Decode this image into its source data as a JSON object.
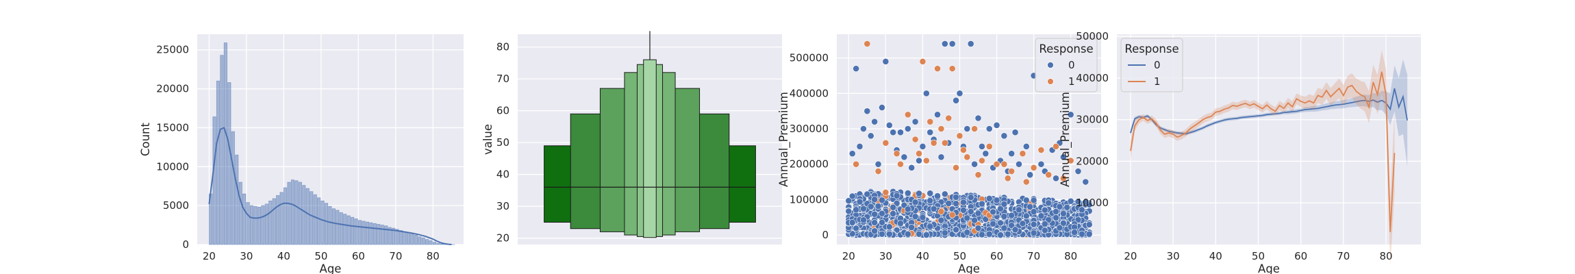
{
  "chart_data": [
    {
      "type": "histogram",
      "xlabel": "Age",
      "ylabel": "Count",
      "xlim": [
        16.8,
        88.2
      ],
      "ylim": [
        0,
        27000
      ],
      "xticks": [
        20,
        30,
        40,
        50,
        60,
        70,
        80
      ],
      "yticks": [
        0,
        5000,
        10000,
        15000,
        20000,
        25000
      ],
      "bin_starts": [
        20,
        21,
        22,
        23,
        24,
        25,
        26,
        27,
        28,
        29,
        30,
        31,
        32,
        33,
        34,
        35,
        36,
        37,
        38,
        39,
        40,
        41,
        42,
        43,
        44,
        45,
        46,
        47,
        48,
        49,
        50,
        51,
        52,
        53,
        54,
        55,
        56,
        57,
        58,
        59,
        60,
        61,
        62,
        63,
        64,
        65,
        66,
        67,
        68,
        69,
        70,
        71,
        72,
        73,
        74,
        75,
        76,
        77,
        78,
        79,
        80,
        81,
        82,
        83,
        84,
        85
      ],
      "counts": [
        6500,
        16400,
        21000,
        24300,
        25900,
        20800,
        14500,
        11500,
        8000,
        6500,
        5400,
        5000,
        4900,
        4800,
        5000,
        5200,
        5600,
        5900,
        6300,
        6700,
        7300,
        8000,
        8300,
        8200,
        8000,
        7600,
        7200,
        6800,
        6400,
        6000,
        5600,
        5300,
        4900,
        4600,
        4400,
        4100,
        3900,
        3700,
        3500,
        3300,
        3100,
        3000,
        2900,
        2800,
        2700,
        2600,
        2500,
        2400,
        2200,
        2100,
        1950,
        1800,
        1650,
        1500,
        1350,
        1200,
        1000,
        850,
        650,
        500,
        300,
        150,
        80,
        40,
        20,
        10
      ],
      "kde": {
        "x": [
          20,
          21,
          22,
          23,
          24,
          25,
          26,
          27,
          28,
          29,
          30,
          31,
          32,
          33,
          34,
          35,
          36,
          37,
          38,
          39,
          40,
          41,
          42,
          43,
          44,
          45,
          46,
          47,
          48,
          49,
          50,
          52,
          54,
          56,
          58,
          60,
          62,
          64,
          66,
          68,
          70,
          72,
          74,
          76,
          78,
          80,
          81,
          82,
          83,
          84,
          85
        ],
        "y": [
          5200,
          9000,
          13000,
          14800,
          15000,
          13500,
          11000,
          8500,
          6300,
          4800,
          4000,
          3500,
          3400,
          3400,
          3500,
          3700,
          4000,
          4400,
          4800,
          5100,
          5300,
          5300,
          5200,
          5000,
          4700,
          4400,
          4100,
          3800,
          3600,
          3400,
          3200,
          2900,
          2700,
          2550,
          2400,
          2300,
          2200,
          2100,
          2000,
          1900,
          1800,
          1650,
          1500,
          1300,
          1050,
          700,
          450,
          250,
          120,
          40,
          0
        ]
      }
    },
    {
      "type": "boxen",
      "xlabel": "",
      "ylabel": "value",
      "ylim": [
        18,
        84
      ],
      "yticks": [
        20,
        30,
        40,
        50,
        60,
        70,
        80
      ],
      "median": 36,
      "whisker": [
        76,
        85
      ],
      "boxes": [
        {
          "low": 25,
          "high": 49,
          "color": "#107010"
        },
        {
          "low": 23,
          "high": 59,
          "color": "#3c8a3c"
        },
        {
          "low": 22,
          "high": 67,
          "color": "#5ca25c"
        },
        {
          "low": 21,
          "high": 72,
          "color": "#75b575"
        },
        {
          "low": 20.5,
          "high": 74.5,
          "color": "#8bc58b"
        },
        {
          "low": 20.2,
          "high": 76,
          "color": "#a6d6a6"
        }
      ]
    },
    {
      "type": "scatter",
      "xlabel": "Age",
      "ylabel": "Annual_Premium",
      "xlim": [
        16.8,
        88.2
      ],
      "ylim": [
        -27000,
        567000
      ],
      "xticks": [
        20,
        30,
        40,
        50,
        60,
        70,
        80
      ],
      "yticks": [
        0,
        100000,
        200000,
        300000,
        400000,
        500000
      ],
      "legend": {
        "title": "Response",
        "entries": [
          "0",
          "1"
        ],
        "placement": "upper right"
      },
      "series": [
        {
          "name": "0",
          "color": "#4c72b0",
          "points": [
            [
              22,
              470000
            ],
            [
              30,
              490000
            ],
            [
              46,
              540000
            ],
            [
              48,
              540000
            ],
            [
              53,
              540000
            ],
            [
              34,
              290000
            ],
            [
              36,
              300000
            ],
            [
              38,
              320000
            ],
            [
              41,
              400000
            ],
            [
              50,
              400000
            ],
            [
              52,
              300000
            ],
            [
              55,
              330000
            ],
            [
              58,
              300000
            ],
            [
              60,
              310000
            ],
            [
              65,
              290000
            ],
            [
              70,
              450000
            ],
            [
              80,
              340000
            ],
            [
              25,
              350000
            ],
            [
              27,
              320000
            ],
            [
              29,
              360000
            ],
            [
              31,
              310000
            ],
            [
              43,
              270000
            ],
            [
              47,
              260000
            ],
            [
              62,
              280000
            ],
            [
              68,
              250000
            ],
            [
              75,
              240000
            ],
            [
              77,
              260000
            ],
            [
              21,
              230000
            ],
            [
              23,
              250000
            ],
            [
              26,
              280000
            ],
            [
              33,
              240000
            ],
            [
              39,
              210000
            ],
            [
              45,
              220000
            ],
            [
              56,
              250000
            ],
            [
              64,
              230000
            ],
            [
              72,
              200000
            ],
            [
              78,
              220000
            ],
            [
              42,
              290000
            ],
            [
              49,
              380000
            ],
            [
              51,
              250000
            ],
            [
              57,
              230000
            ],
            [
              24,
              300000
            ],
            [
              32,
              290000
            ],
            [
              35,
              220000
            ],
            [
              40,
              250000
            ],
            [
              44,
              340000
            ],
            [
              61,
              210000
            ],
            [
              66,
              200000
            ],
            [
              73,
              180000
            ],
            [
              82,
              180000
            ],
            [
              28,
              200000
            ],
            [
              37,
              190000
            ],
            [
              54,
              200000
            ],
            [
              59,
              190000
            ],
            [
              63,
              180000
            ],
            [
              69,
              170000
            ],
            [
              76,
              160000
            ],
            [
              84,
              150000
            ]
          ]
        },
        {
          "name": "1",
          "color": "#dd8452",
          "points": [
            [
              25,
              540000
            ],
            [
              40,
              490000
            ],
            [
              44,
              470000
            ],
            [
              48,
              470000
            ],
            [
              36,
              340000
            ],
            [
              42,
              320000
            ],
            [
              45,
              300000
            ],
            [
              47,
              330000
            ],
            [
              50,
              280000
            ],
            [
              54,
              300000
            ],
            [
              58,
              250000
            ],
            [
              62,
              200000
            ],
            [
              67,
              230000
            ],
            [
              72,
              240000
            ],
            [
              76,
              250000
            ],
            [
              80,
              210000
            ],
            [
              30,
              260000
            ],
            [
              33,
              230000
            ],
            [
              38,
              270000
            ],
            [
              43,
              260000
            ],
            [
              46,
              260000
            ],
            [
              52,
              220000
            ],
            [
              56,
              210000
            ],
            [
              60,
              200000
            ],
            [
              64,
              180000
            ],
            [
              70,
              190000
            ],
            [
              74,
              170000
            ],
            [
              22,
              200000
            ],
            [
              28,
              180000
            ],
            [
              34,
              200000
            ],
            [
              41,
              210000
            ],
            [
              49,
              190000
            ],
            [
              55,
              170000
            ],
            [
              63,
              160000
            ],
            [
              68,
              150000
            ],
            [
              78,
              160000
            ],
            [
              39,
              230000
            ],
            [
              51,
              240000
            ]
          ]
        }
      ]
    },
    {
      "type": "line",
      "xlabel": "Age",
      "ylabel": "Annual_Premium",
      "xlim": [
        16.8,
        88.2
      ],
      "ylim": [
        0,
        50500
      ],
      "xticks": [
        20,
        30,
        40,
        50,
        60,
        70,
        80
      ],
      "yticks": [
        10000,
        20000,
        30000,
        40000,
        50000
      ],
      "legend": {
        "title": "Response",
        "entries": [
          "0",
          "1"
        ],
        "placement": "upper left"
      },
      "series": [
        {
          "name": "0",
          "color": "#4c72b0",
          "x": [
            20,
            21,
            22,
            23,
            24,
            25,
            26,
            27,
            28,
            29,
            30,
            31,
            32,
            33,
            34,
            35,
            36,
            37,
            38,
            39,
            40,
            41,
            42,
            43,
            44,
            45,
            46,
            47,
            48,
            49,
            50,
            51,
            52,
            53,
            54,
            55,
            56,
            57,
            58,
            59,
            60,
            61,
            62,
            63,
            64,
            65,
            66,
            67,
            68,
            69,
            70,
            71,
            72,
            73,
            74,
            75,
            76,
            77,
            78,
            79,
            80,
            81,
            82,
            83,
            84,
            85
          ],
          "y": [
            26800,
            30200,
            30700,
            30500,
            30900,
            30000,
            28800,
            28000,
            27600,
            27200,
            27000,
            26800,
            26700,
            26600,
            26900,
            27200,
            27600,
            28000,
            28500,
            28900,
            29300,
            29600,
            29900,
            30100,
            30200,
            30300,
            30500,
            30600,
            30700,
            30800,
            30900,
            31000,
            31200,
            31300,
            31400,
            31500,
            31700,
            31800,
            31900,
            32000,
            32200,
            32400,
            32500,
            32600,
            32700,
            32900,
            33100,
            33300,
            33500,
            33600,
            33700,
            33900,
            34100,
            34300,
            34500,
            34600,
            34400,
            34700,
            34200,
            34600,
            34000,
            32500,
            37500,
            33000,
            35500,
            29800
          ],
          "ci_halfwidth": [
            800,
            500,
            400,
            400,
            400,
            400,
            400,
            400,
            400,
            400,
            400,
            400,
            400,
            400,
            400,
            400,
            400,
            400,
            400,
            400,
            400,
            400,
            400,
            400,
            400,
            400,
            400,
            400,
            400,
            400,
            400,
            400,
            400,
            400,
            400,
            400,
            400,
            500,
            500,
            500,
            500,
            600,
            600,
            700,
            700,
            700,
            800,
            800,
            900,
            900,
            1000,
            1000,
            1100,
            1200,
            1300,
            1400,
            1500,
            1700,
            2000,
            2300,
            2800,
            3800,
            5500,
            7000,
            9000,
            11000
          ]
        },
        {
          "name": "1",
          "color": "#dd8452",
          "x": [
            20,
            21,
            22,
            23,
            24,
            25,
            26,
            27,
            28,
            29,
            30,
            31,
            32,
            33,
            34,
            35,
            36,
            37,
            38,
            39,
            40,
            41,
            42,
            43,
            44,
            45,
            46,
            47,
            48,
            49,
            50,
            51,
            52,
            53,
            54,
            55,
            56,
            57,
            58,
            59,
            60,
            61,
            62,
            63,
            64,
            65,
            66,
            67,
            68,
            69,
            70,
            71,
            72,
            73,
            74,
            75,
            76,
            77,
            78,
            79,
            80,
            81,
            82
          ],
          "y": [
            22500,
            28500,
            30000,
            30500,
            29800,
            30200,
            29200,
            27500,
            26500,
            26800,
            26500,
            25800,
            26200,
            26800,
            27800,
            28500,
            29200,
            30000,
            30500,
            30800,
            31800,
            32000,
            32500,
            32800,
            33400,
            33200,
            33600,
            33900,
            33400,
            33800,
            33200,
            32600,
            33500,
            32600,
            32000,
            33400,
            32700,
            34000,
            33100,
            35000,
            34400,
            34000,
            34500,
            34000,
            35800,
            35400,
            37000,
            35500,
            36500,
            37500,
            35800,
            37800,
            38200,
            36800,
            36000,
            35500,
            33000,
            39000,
            36000,
            41500,
            36000,
            3000,
            22000
          ],
          "ci_halfwidth": [
            2500,
            1200,
            900,
            800,
            800,
            800,
            900,
            900,
            900,
            900,
            900,
            900,
            900,
            900,
            900,
            900,
            900,
            900,
            900,
            900,
            900,
            900,
            900,
            900,
            900,
            900,
            900,
            900,
            900,
            900,
            900,
            900,
            1000,
            1000,
            1000,
            1100,
            1100,
            1200,
            1300,
            1300,
            1400,
            1500,
            1600,
            1700,
            1800,
            1900,
            2000,
            2100,
            2200,
            2400,
            2500,
            2700,
            2900,
            3100,
            3300,
            3500,
            3800,
            4200,
            4700,
            5200,
            6000,
            8000,
            10000
          ]
        }
      ]
    }
  ]
}
